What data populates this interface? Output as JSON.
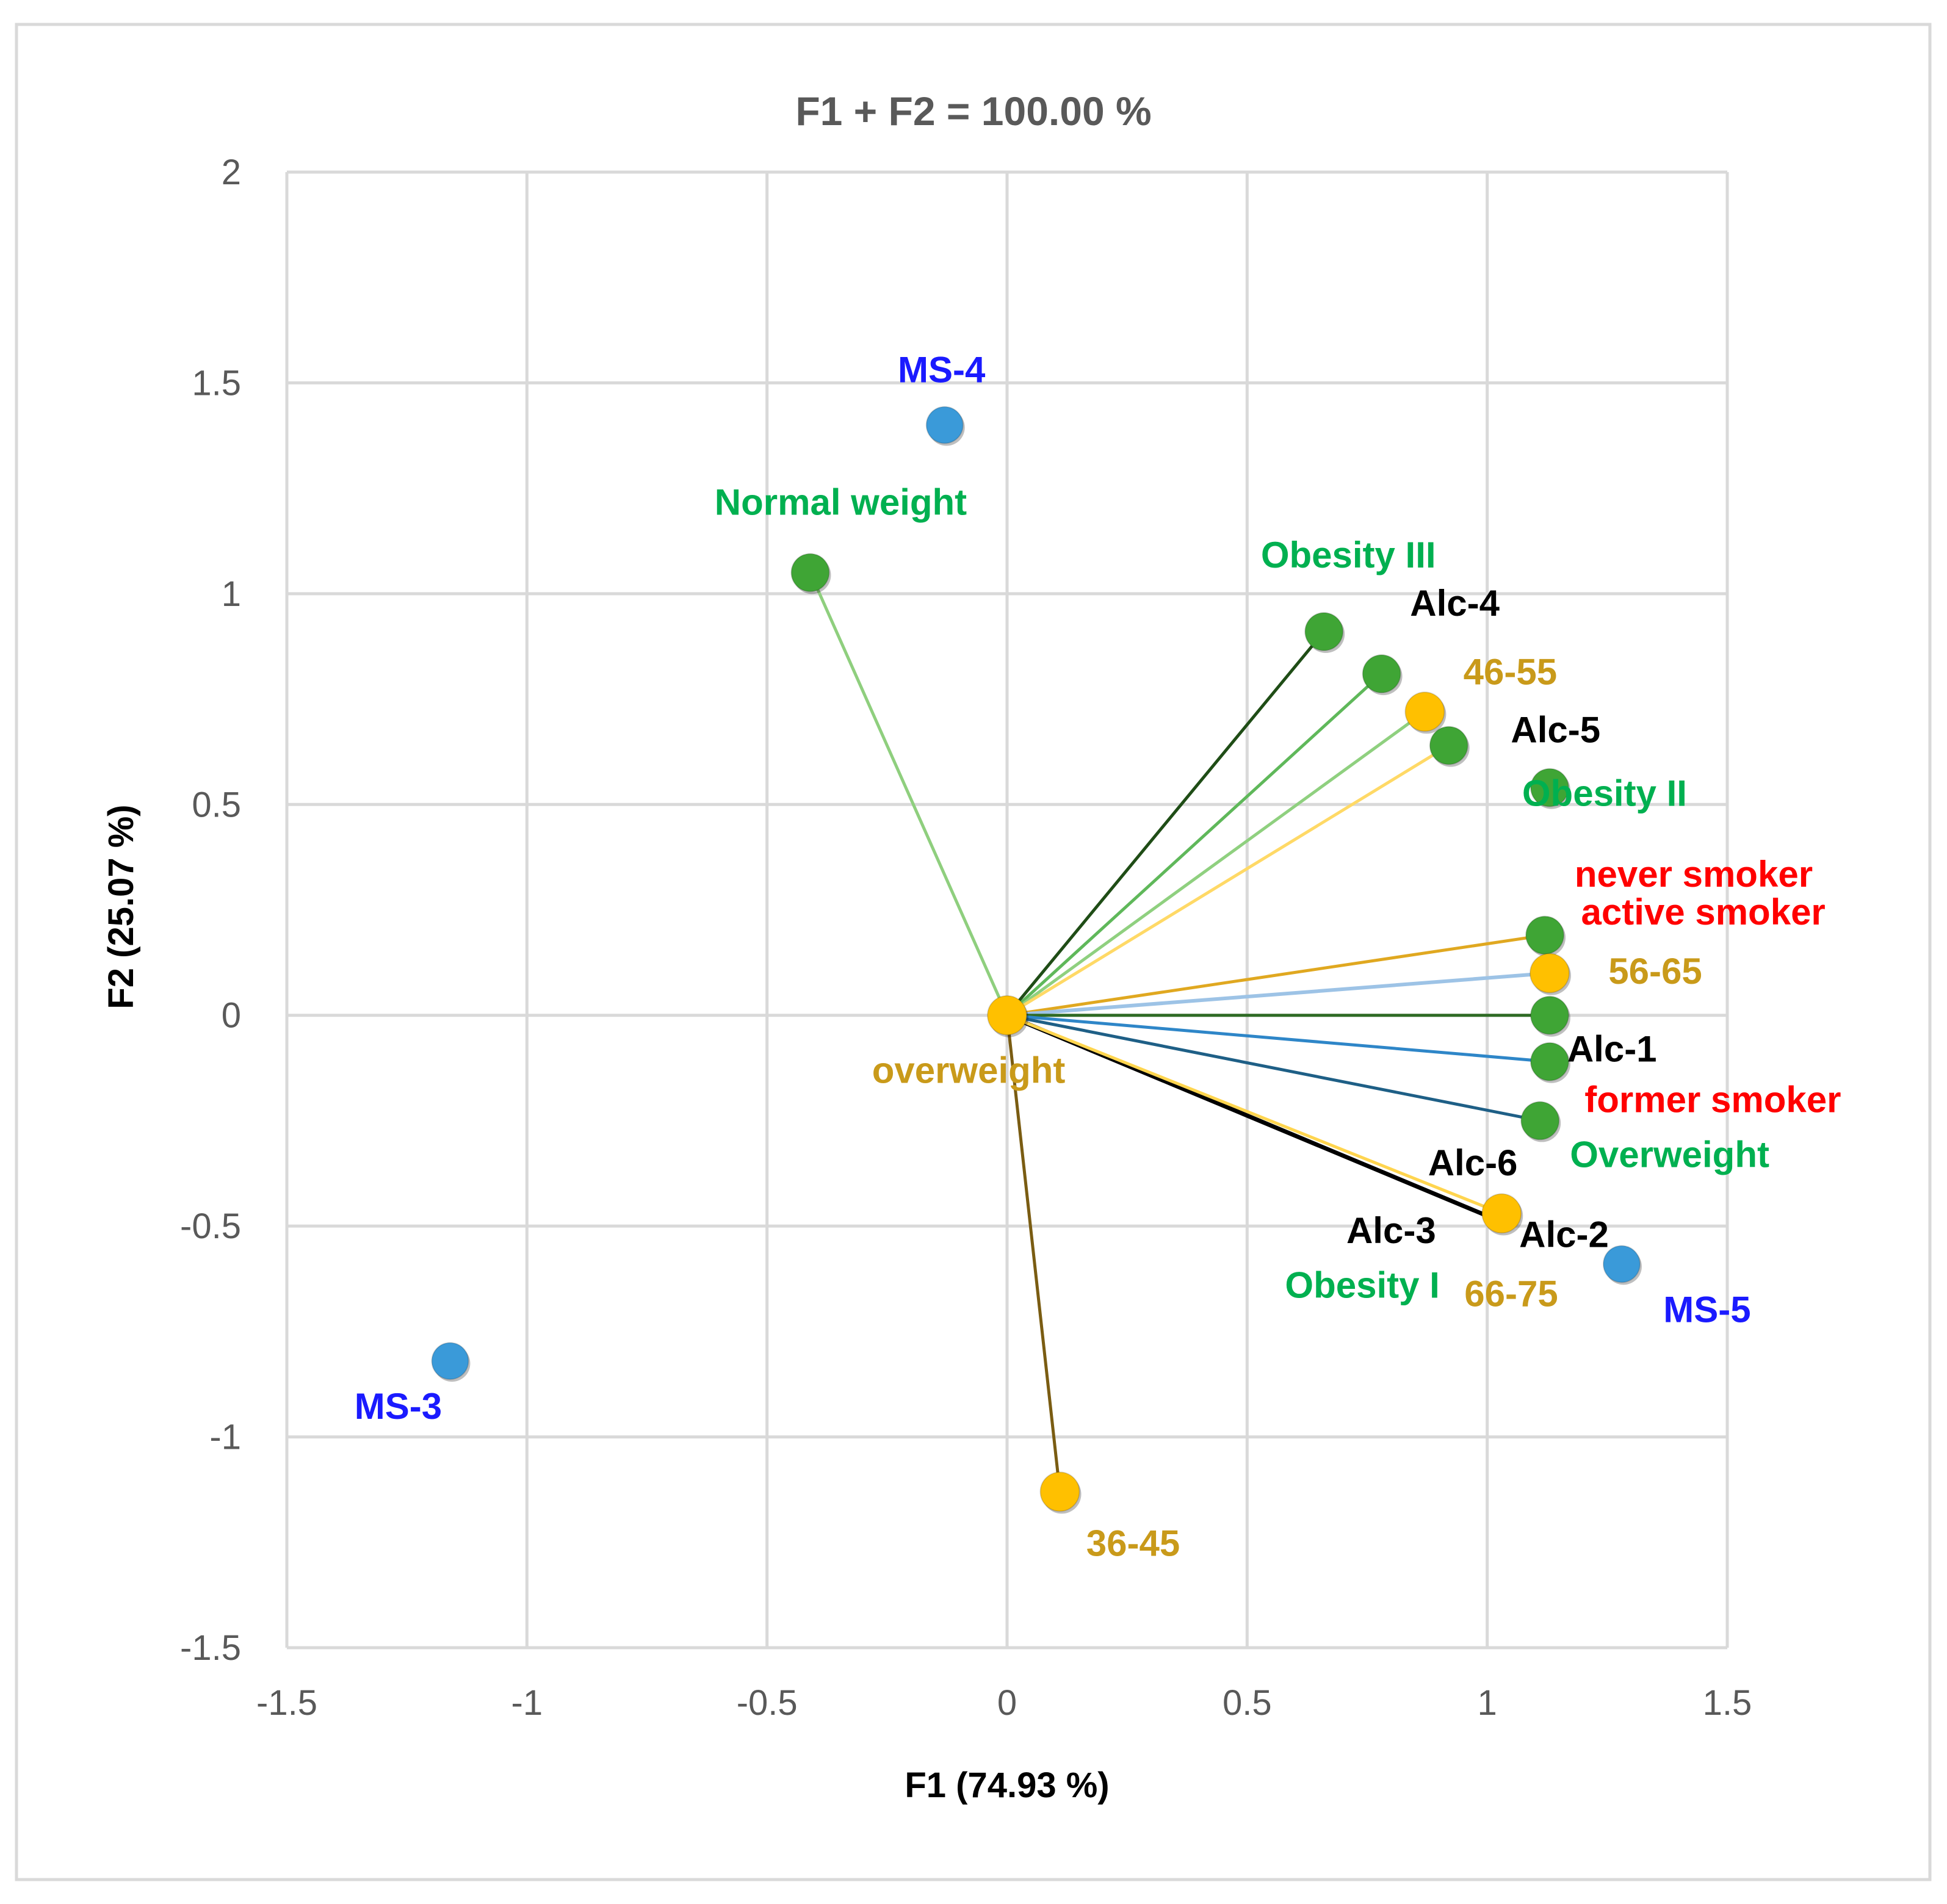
{
  "chart_data": {
    "type": "scatter",
    "title": "F1 + F2 = 100.00 %",
    "xlabel": "F1 (74.93 %)",
    "ylabel": "F2 (25.07 %)",
    "xlim": [
      -1.5,
      1.5
    ],
    "ylim": [
      -1.5,
      2
    ],
    "xticks": [
      -1.5,
      -1,
      -0.5,
      0,
      0.5,
      1,
      1.5
    ],
    "yticks": [
      -1.5,
      -1,
      -0.5,
      0,
      0.5,
      1,
      1.5,
      2
    ],
    "xtick_labels": [
      "-1.5",
      "-1",
      "-0.5",
      "0",
      "0.5",
      "1",
      "1.5"
    ],
    "ytick_labels": [
      "-1.5",
      "-1",
      "-0.5",
      "0",
      "0.5",
      "1",
      "1.5",
      "2"
    ],
    "grid": true,
    "colors": {
      "blue_point": "#3a9ad9",
      "blue_label": "#1a1aff",
      "green_point": "#3fa535",
      "green_label": "#00b050",
      "yellow_point": "#ffc000",
      "gold_label": "#c99a1a",
      "red_label": "#ff0000",
      "black_label": "#000000",
      "grid": "#d9d9d9"
    },
    "vectors": [
      {
        "x": -0.41,
        "y": 1.05,
        "color": "#8fcf7e",
        "width": 5
      },
      {
        "x": 0.66,
        "y": 0.91,
        "color": "#1f4d16",
        "width": 5
      },
      {
        "x": 0.78,
        "y": 0.81,
        "color": "#5fb85a",
        "width": 5
      },
      {
        "x": 0.87,
        "y": 0.72,
        "color": "#8fd07f",
        "width": 5
      },
      {
        "x": 0.92,
        "y": 0.64,
        "color": "#ffd966",
        "width": 5
      },
      {
        "x": 1.12,
        "y": 0.19,
        "color": "#e0a820",
        "width": 5
      },
      {
        "x": 1.13,
        "y": 0.1,
        "color": "#9dc3e6",
        "width": 6
      },
      {
        "x": 1.13,
        "y": 0.0,
        "color": "#2f6b25",
        "width": 5
      },
      {
        "x": 1.13,
        "y": -0.11,
        "color": "#2e86c8",
        "width": 5
      },
      {
        "x": 1.11,
        "y": -0.25,
        "color": "#1e5f86",
        "width": 5
      },
      {
        "x": 1.03,
        "y": -0.49,
        "color": "#000000",
        "width": 7
      },
      {
        "x": 1.03,
        "y": -0.47,
        "color": "#ffd54f",
        "width": 5
      },
      {
        "x": 0.11,
        "y": -1.13,
        "color": "#7a5c12",
        "width": 5
      }
    ],
    "points": [
      {
        "x": -0.13,
        "y": 1.4,
        "label": "MS-4",
        "group": "blue",
        "dx": -5,
        "dy": -70,
        "anchor": "middle"
      },
      {
        "x": -1.16,
        "y": -0.82,
        "label": "MS-3",
        "group": "blue",
        "dx": -85,
        "dy": 95,
        "anchor": "middle"
      },
      {
        "x": 1.28,
        "y": -0.59,
        "label": "MS-5",
        "group": "blue",
        "dx": 140,
        "dy": 95,
        "anchor": "middle"
      },
      {
        "x": -0.41,
        "y": 1.05,
        "label": "Normal weight",
        "group": "green",
        "dx": 50,
        "dy": -95,
        "anchor": "middle"
      },
      {
        "x": 0.66,
        "y": 0.91,
        "label": "Obesity III",
        "group": "green",
        "dx": 40,
        "dy": -105,
        "anchor": "middle"
      },
      {
        "x": 0.78,
        "y": 0.81,
        "label": "Alc-4",
        "group": "black",
        "dx": 120,
        "dy": -95,
        "anchor": "middle"
      },
      {
        "x": 0.87,
        "y": 0.72,
        "label": "46-55",
        "group": "gold",
        "dx": 140,
        "dy": -45,
        "anchor": "middle"
      },
      {
        "x": 0.92,
        "y": 0.64,
        "label": "Alc-5",
        "group": "black",
        "dx": 175,
        "dy": -5,
        "anchor": "middle"
      },
      {
        "x": 1.13,
        "y": 0.54,
        "label": "Obesity II",
        "group": "green",
        "dx": 90,
        "dy": 30,
        "anchor": "middle"
      },
      {
        "x": 1.12,
        "y": 0.19,
        "label": "",
        "group": "green"
      },
      {
        "x": 1.13,
        "y": 0.1,
        "label": "",
        "group": "yellow"
      },
      {
        "x": 1.13,
        "y": 0.0,
        "label": "",
        "group": "green"
      },
      {
        "x": 1.13,
        "y": -0.11,
        "label": "",
        "group": "green"
      },
      {
        "x": 1.11,
        "y": -0.25,
        "label": "",
        "group": "green"
      },
      {
        "x": 1.03,
        "y": -0.47,
        "label": "",
        "group": "yellow"
      },
      {
        "x": 0.11,
        "y": -1.13,
        "label": "36-45",
        "group": "gold",
        "dx": 120,
        "dy": 105,
        "anchor": "middle"
      },
      {
        "x": 0.0,
        "y": 0.0,
        "label": "",
        "group": "yellow"
      }
    ],
    "labels": [
      {
        "x": 1.43,
        "y": 0.305,
        "text": "never smoker",
        "group": "red",
        "anchor": "middle"
      },
      {
        "x": 1.45,
        "y": 0.215,
        "text": "active smoker",
        "group": "red",
        "anchor": "middle"
      },
      {
        "x": 1.35,
        "y": 0.075,
        "text": "56-65",
        "group": "gold",
        "anchor": "middle"
      },
      {
        "x": 1.26,
        "y": -0.11,
        "text": "Alc-1",
        "group": "black",
        "anchor": "middle"
      },
      {
        "x": 1.47,
        "y": -0.23,
        "text": "former smoker",
        "group": "red",
        "anchor": "middle"
      },
      {
        "x": 1.38,
        "y": -0.36,
        "text": "Overweight",
        "group": "green",
        "anchor": "middle"
      },
      {
        "x": 0.97,
        "y": -0.38,
        "text": "Alc-6",
        "group": "black",
        "anchor": "middle"
      },
      {
        "x": 0.8,
        "y": -0.54,
        "text": "Alc-3",
        "group": "black",
        "anchor": "middle"
      },
      {
        "x": 1.16,
        "y": -0.55,
        "text": "Alc-2",
        "group": "black",
        "anchor": "middle"
      },
      {
        "x": 0.74,
        "y": -0.67,
        "text": "Obesity I",
        "group": "green",
        "anchor": "middle"
      },
      {
        "x": 1.05,
        "y": -0.69,
        "text": "66-75",
        "group": "gold",
        "anchor": "middle"
      },
      {
        "x": -0.08,
        "y": -0.16,
        "text": "overweight",
        "group": "gold",
        "anchor": "middle"
      }
    ]
  }
}
